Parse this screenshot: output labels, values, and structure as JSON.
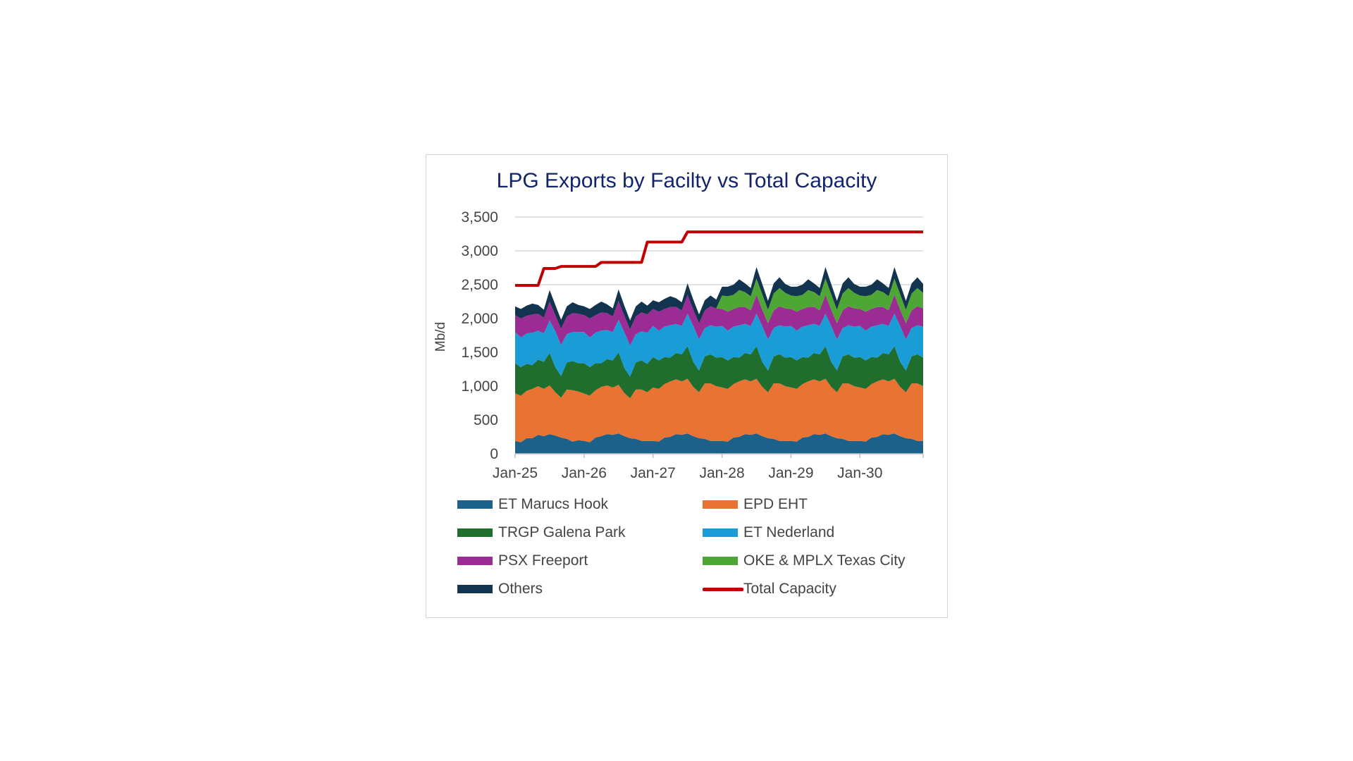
{
  "chart_data": {
    "type": "area",
    "title": "LPG Exports by Facilty vs Total Capacity",
    "xlabel": "",
    "ylabel": "Mb/d",
    "ylim": [
      0,
      3500
    ],
    "y_ticks": [
      "0",
      "500",
      "1,000",
      "1,500",
      "2,000",
      "2,500",
      "3,000",
      "3,500"
    ],
    "x_ticks": [
      "Jan-25",
      "Jan-26",
      "Jan-27",
      "Jan-28",
      "Jan-29",
      "Jan-30"
    ],
    "x_start": "Jan-25",
    "x_end": "Dec-30",
    "grid": "horizontal",
    "legend_position": "bottom",
    "stacked": true,
    "series": [
      {
        "name": "ET Marucs Hook",
        "color": "#1b6189",
        "values": [
          190,
          170,
          230,
          230,
          280,
          260,
          290,
          270,
          240,
          220,
          180,
          200,
          190,
          170,
          240,
          260,
          290,
          280,
          300,
          260,
          230,
          220,
          190,
          190,
          190,
          180,
          240,
          250,
          290,
          280,
          300,
          260,
          230,
          220,
          190,
          190,
          190,
          180,
          240,
          250,
          290,
          280,
          300,
          260,
          230,
          220,
          190,
          190,
          190,
          180,
          240,
          250,
          290,
          280,
          300,
          260,
          230,
          220,
          190,
          190,
          190,
          180,
          240,
          250,
          290,
          280,
          300,
          260,
          230,
          220,
          190,
          190
        ]
      },
      {
        "name": "EPD EHT",
        "color": "#e87333",
        "values": [
          700,
          690,
          700,
          730,
          720,
          700,
          720,
          640,
          590,
          730,
          760,
          720,
          700,
          690,
          700,
          730,
          720,
          700,
          720,
          640,
          590,
          730,
          760,
          720,
          790,
          780,
          790,
          820,
          810,
          790,
          810,
          730,
          680,
          820,
          850,
          810,
          790,
          780,
          790,
          820,
          810,
          790,
          810,
          730,
          680,
          820,
          850,
          810,
          790,
          780,
          790,
          820,
          810,
          790,
          810,
          730,
          680,
          820,
          850,
          810,
          790,
          780,
          790,
          820,
          810,
          790,
          810,
          730,
          680,
          820,
          850,
          810
        ]
      },
      {
        "name": "TRGP Galena Park",
        "color": "#1f6e2d",
        "values": [
          450,
          420,
          400,
          350,
          390,
          400,
          480,
          370,
          320,
          400,
          430,
          420,
          450,
          420,
          400,
          350,
          390,
          400,
          480,
          370,
          320,
          400,
          430,
          420,
          450,
          420,
          400,
          350,
          390,
          400,
          480,
          370,
          320,
          400,
          430,
          420,
          450,
          420,
          400,
          350,
          390,
          400,
          480,
          370,
          320,
          400,
          430,
          420,
          450,
          420,
          400,
          350,
          390,
          400,
          480,
          370,
          320,
          400,
          430,
          420,
          450,
          420,
          400,
          350,
          390,
          400,
          480,
          370,
          320,
          400,
          430,
          420
        ]
      },
      {
        "name": "ET Nederland",
        "color": "#1a9cd7",
        "values": [
          460,
          440,
          450,
          480,
          430,
          420,
          480,
          530,
          460,
          420,
          430,
          460,
          460,
          440,
          450,
          480,
          430,
          420,
          480,
          530,
          460,
          420,
          430,
          460,
          460,
          440,
          450,
          480,
          430,
          420,
          480,
          530,
          460,
          420,
          430,
          460,
          460,
          440,
          450,
          480,
          430,
          420,
          480,
          530,
          460,
          420,
          430,
          460,
          460,
          440,
          450,
          480,
          430,
          420,
          480,
          530,
          460,
          420,
          430,
          460,
          460,
          440,
          450,
          480,
          430,
          420,
          480,
          530,
          460,
          420,
          430,
          460
        ]
      },
      {
        "name": "PSX Freeport",
        "color": "#9b2c93",
        "values": [
          250,
          280,
          260,
          270,
          250,
          230,
          280,
          240,
          240,
          260,
          280,
          270,
          250,
          280,
          260,
          270,
          250,
          230,
          280,
          240,
          240,
          260,
          280,
          270,
          250,
          280,
          260,
          270,
          250,
          230,
          280,
          240,
          240,
          260,
          280,
          270,
          250,
          280,
          260,
          270,
          250,
          230,
          280,
          240,
          240,
          260,
          280,
          270,
          250,
          280,
          260,
          270,
          250,
          230,
          280,
          240,
          240,
          260,
          280,
          270,
          250,
          280,
          260,
          270,
          250,
          230,
          280,
          240,
          240,
          260,
          280,
          270
        ]
      },
      {
        "name": "OKE & MPLX Texas City",
        "color": "#4ea635",
        "values": [
          0,
          0,
          0,
          0,
          0,
          0,
          0,
          0,
          0,
          0,
          0,
          0,
          0,
          0,
          0,
          0,
          0,
          0,
          0,
          0,
          0,
          0,
          0,
          0,
          0,
          0,
          0,
          0,
          0,
          0,
          0,
          0,
          0,
          0,
          0,
          0,
          200,
          230,
          210,
          250,
          220,
          210,
          240,
          230,
          200,
          250,
          270,
          230,
          200,
          230,
          210,
          250,
          220,
          210,
          240,
          230,
          200,
          250,
          270,
          230,
          200,
          230,
          210,
          250,
          220,
          210,
          240,
          230,
          200,
          250,
          270,
          230
        ]
      },
      {
        "name": "Others",
        "color": "#13344e",
        "values": [
          130,
          140,
          150,
          160,
          130,
          120,
          170,
          150,
          130,
          150,
          160,
          130,
          130,
          140,
          150,
          160,
          130,
          120,
          170,
          150,
          130,
          150,
          160,
          130,
          130,
          140,
          150,
          160,
          130,
          120,
          170,
          150,
          130,
          150,
          160,
          130,
          130,
          140,
          150,
          160,
          130,
          120,
          170,
          150,
          130,
          150,
          160,
          130,
          130,
          140,
          150,
          160,
          130,
          120,
          170,
          150,
          130,
          150,
          160,
          130,
          130,
          140,
          150,
          160,
          130,
          120,
          170,
          150,
          130,
          150,
          160,
          130
        ]
      }
    ],
    "capacity": {
      "name": "Total Capacity",
      "color": "#c00000",
      "steps": [
        {
          "from": "Jan-25",
          "value": 2490
        },
        {
          "from": "Jun-25",
          "value": 2740
        },
        {
          "from": "Sep-25",
          "value": 2770
        },
        {
          "from": "Apr-26",
          "value": 2830
        },
        {
          "from": "Dec-26",
          "value": 3130
        },
        {
          "from": "Jul-27",
          "value": 3280
        }
      ]
    }
  }
}
